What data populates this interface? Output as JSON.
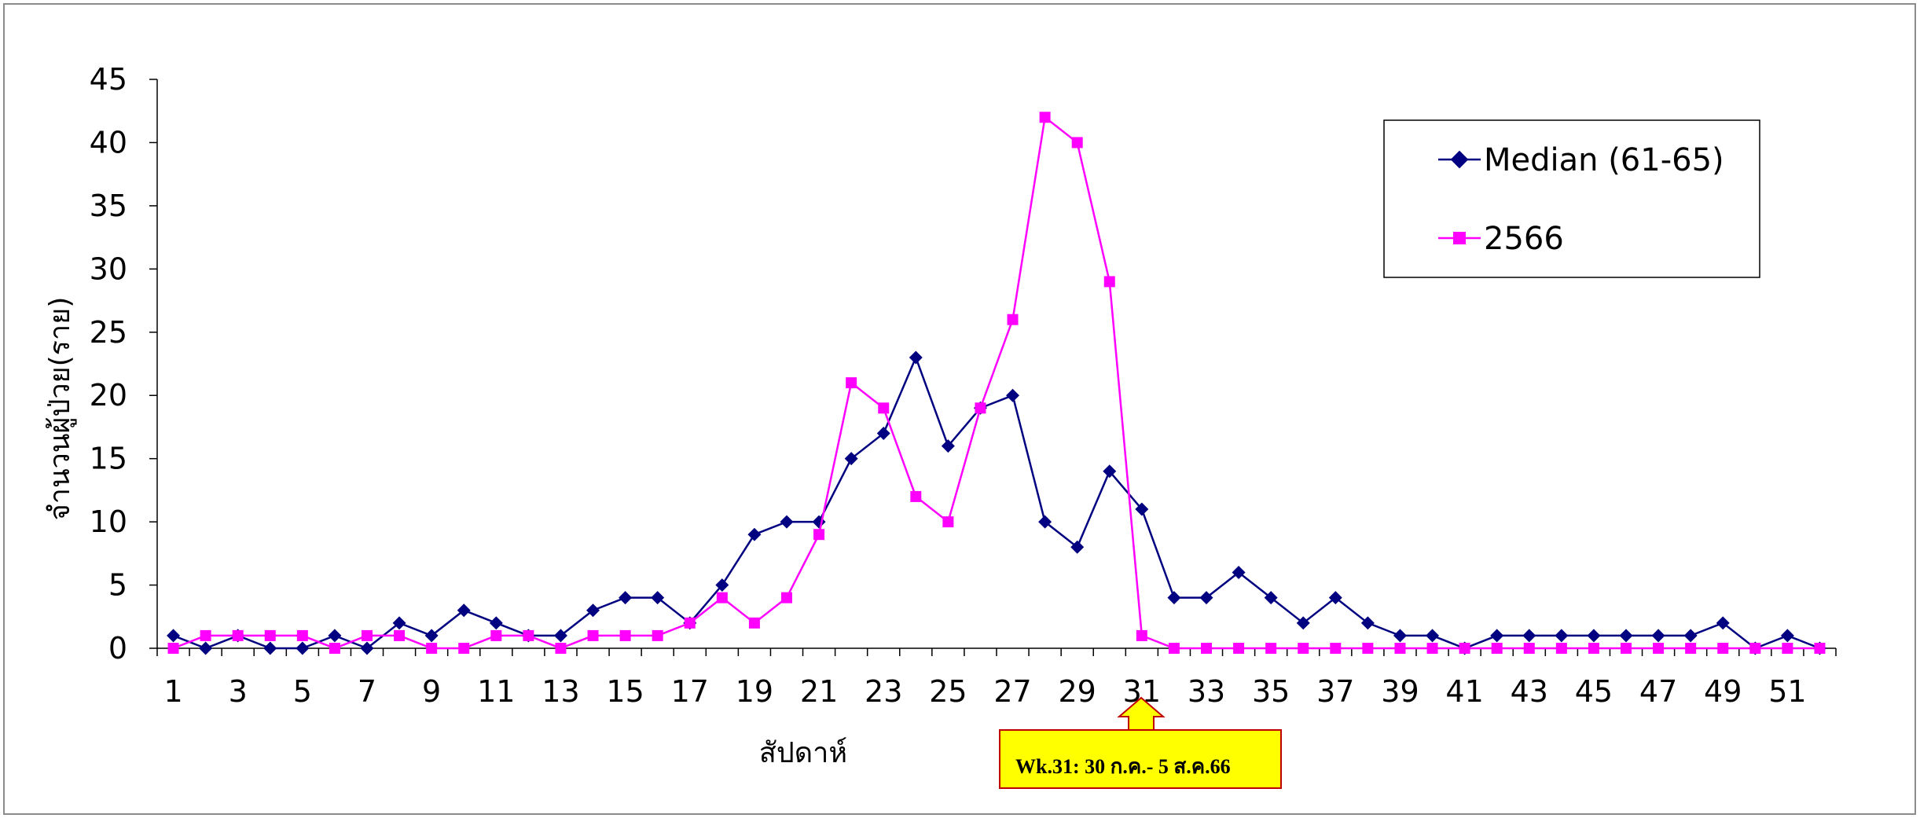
{
  "chart_data": {
    "type": "line",
    "title": "",
    "xlabel": "สัปดาห์",
    "ylabel": "จำนวนผู้ป่วย(ราย)",
    "ylim": [
      0,
      45
    ],
    "yticks": [
      "0",
      "5",
      "10",
      "15",
      "20",
      "25",
      "30",
      "35",
      "40",
      "45"
    ],
    "x": [
      1,
      2,
      3,
      4,
      5,
      6,
      7,
      8,
      9,
      10,
      11,
      12,
      13,
      14,
      15,
      16,
      17,
      18,
      19,
      20,
      21,
      22,
      23,
      24,
      25,
      26,
      27,
      28,
      29,
      30,
      31,
      32,
      33,
      34,
      35,
      36,
      37,
      38,
      39,
      40,
      41,
      42,
      43,
      44,
      45,
      46,
      47,
      48,
      49,
      50,
      51,
      52
    ],
    "xticks": [
      "1",
      "3",
      "5",
      "7",
      "9",
      "11",
      "13",
      "15",
      "17",
      "19",
      "21",
      "23",
      "25",
      "27",
      "29",
      "31",
      "33",
      "35",
      "37",
      "39",
      "41",
      "43",
      "45",
      "47",
      "49",
      "51"
    ],
    "series": [
      {
        "name": "Median (61-65)",
        "color": "#000080",
        "marker": "diamond",
        "values": [
          1,
          0,
          1,
          0,
          0,
          1,
          0,
          2,
          1,
          3,
          2,
          1,
          1,
          3,
          4,
          4,
          2,
          5,
          9,
          10,
          10,
          15,
          17,
          23,
          16,
          19,
          20,
          10,
          8,
          14,
          11,
          4,
          4,
          6,
          4,
          2,
          4,
          2,
          1,
          1,
          0,
          1,
          1,
          1,
          1,
          1,
          1,
          1,
          2,
          0,
          1,
          0
        ]
      },
      {
        "name": "2566",
        "color": "#ff00ff",
        "marker": "square",
        "values": [
          0,
          1,
          1,
          1,
          1,
          0,
          1,
          1,
          0,
          0,
          1,
          1,
          0,
          1,
          1,
          1,
          2,
          4,
          2,
          4,
          9,
          21,
          19,
          12,
          10,
          19,
          26,
          42,
          40,
          29,
          1,
          0,
          0,
          0,
          0,
          0,
          0,
          0,
          0,
          0,
          0,
          0,
          0,
          0,
          0,
          0,
          0,
          0,
          0,
          0,
          0,
          0
        ]
      }
    ],
    "legend_position": "top-right",
    "grid": false,
    "annotation": {
      "text": "Wk.31: 30 ก.ค.- 5 ส.ค.66",
      "week": 31,
      "box_color": "#ffff00",
      "border_color": "#c00000"
    }
  }
}
